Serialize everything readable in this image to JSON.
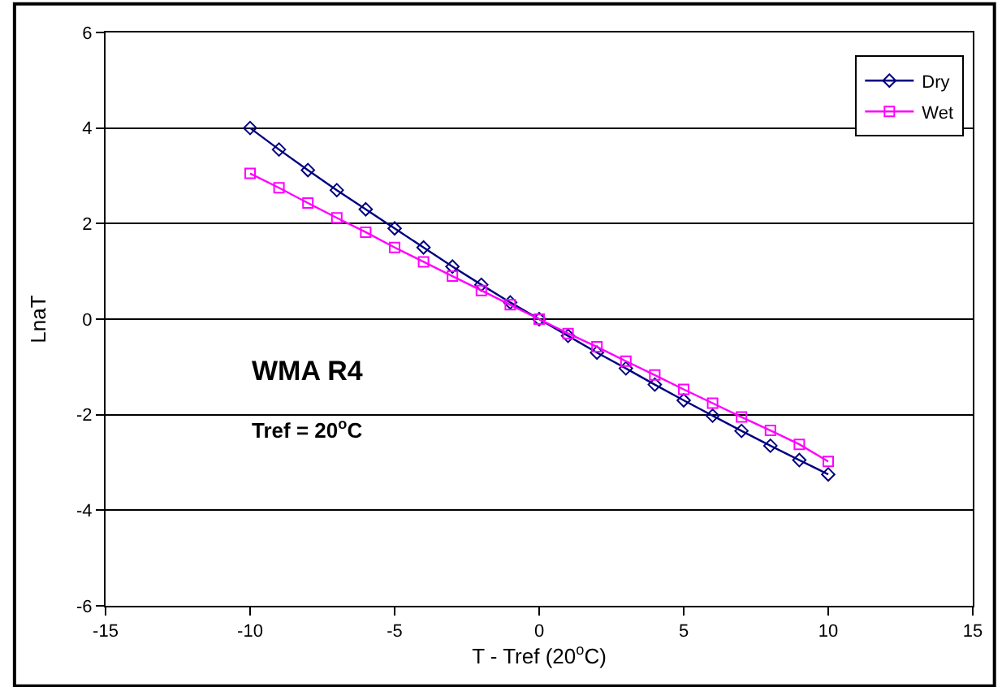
{
  "chart_data": {
    "type": "line",
    "xlabel": "T - Tref (20$^{o}$C)",
    "ylabel": "LnaT",
    "x": [
      -10,
      -9,
      -8,
      -7,
      -6,
      -5,
      -4,
      -3,
      -2,
      -1,
      0,
      1,
      2,
      3,
      4,
      5,
      6,
      7,
      8,
      9,
      10
    ],
    "series": [
      {
        "name": "Dry",
        "color": "#000080",
        "marker": "diamond",
        "values": [
          4.0,
          3.55,
          3.12,
          2.7,
          2.3,
          1.9,
          1.5,
          1.1,
          0.72,
          0.35,
          0,
          -0.35,
          -0.7,
          -1.03,
          -1.37,
          -1.7,
          -2.02,
          -2.34,
          -2.65,
          -2.95,
          -3.25
        ]
      },
      {
        "name": "Wet",
        "color": "#ff00ff",
        "marker": "square",
        "values": [
          3.05,
          2.75,
          2.43,
          2.12,
          1.82,
          1.5,
          1.2,
          0.9,
          0.6,
          0.3,
          0,
          -0.3,
          -0.58,
          -0.88,
          -1.17,
          -1.47,
          -1.76,
          -2.05,
          -2.33,
          -2.62,
          -2.98
        ]
      }
    ],
    "xlim": [
      -15,
      15
    ],
    "xticks": [
      -15,
      -10,
      -5,
      0,
      5,
      10,
      15
    ],
    "ylim": [
      -6,
      6
    ],
    "yticks": [
      -6,
      -4,
      -2,
      0,
      2,
      4,
      6
    ],
    "grid": "y",
    "legend": "top right",
    "line_style": "solid",
    "annotations": [
      "WMA R4",
      "Tref = 20$^{o}$C"
    ]
  }
}
